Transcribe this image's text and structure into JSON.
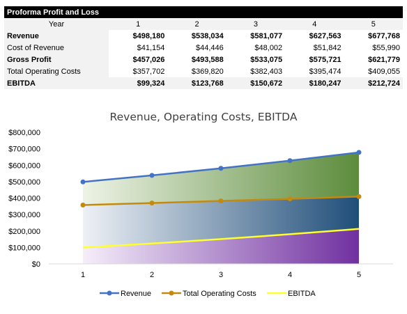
{
  "table": {
    "title": "Proforma Profit and Loss",
    "year_label": "Year",
    "years": [
      "1",
      "2",
      "3",
      "4",
      "5"
    ],
    "rows": [
      {
        "label": "Revenue",
        "values": [
          "$498,180",
          "$538,034",
          "$581,077",
          "$627,563",
          "$677,768"
        ],
        "bold": true
      },
      {
        "label": "Cost of Revenue",
        "values": [
          "$41,154",
          "$44,446",
          "$48,002",
          "$51,842",
          "$55,990"
        ],
        "bold": false
      },
      {
        "label": "Gross Profit",
        "values": [
          "$457,026",
          "$493,588",
          "$533,075",
          "$575,721",
          "$621,779"
        ],
        "bold": true
      },
      {
        "label": "Total Operating Costs",
        "values": [
          "$357,702",
          "$369,820",
          "$382,403",
          "$395,474",
          "$409,055"
        ],
        "bold": false
      },
      {
        "label": "EBITDA",
        "values": [
          "$99,324",
          "$123,768",
          "$150,672",
          "$180,247",
          "$212,724"
        ],
        "bold": true
      }
    ]
  },
  "chart_data": {
    "type": "line",
    "title": "Revenue, Operating Costs, EBITDA",
    "categories": [
      "1",
      "2",
      "3",
      "4",
      "5"
    ],
    "ylim": [
      0,
      800000
    ],
    "yticks": [
      "$0",
      "$100,000",
      "$200,000",
      "$300,000",
      "$400,000",
      "$500,000",
      "$600,000",
      "$700,000",
      "$800,000"
    ],
    "series": [
      {
        "name": "Revenue",
        "values": [
          498180,
          538034,
          581077,
          627563,
          677768
        ],
        "color": "#4472c4",
        "marker": true
      },
      {
        "name": "Total Operating Costs",
        "values": [
          357702,
          369820,
          382403,
          395474,
          409055
        ],
        "color": "#c38a0f",
        "marker": true
      },
      {
        "name": "EBITDA",
        "values": [
          99324,
          123768,
          150672,
          180247,
          212724
        ],
        "color": "#ffff2e",
        "marker": false
      }
    ],
    "legend_position": "bottom",
    "area_colors": {
      "top_band": "#5c8c3c",
      "mid_band": "#1f4e79",
      "bottom_band": "#7030a0"
    }
  }
}
